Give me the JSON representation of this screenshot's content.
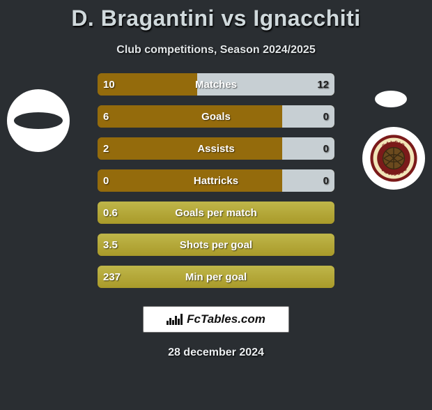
{
  "header": {
    "title": "D. Bragantini vs Ignacchiti",
    "subtitle": "Club competitions, Season 2024/2025"
  },
  "colors": {
    "background": "#2a2e32",
    "bar_base": "#946b0c",
    "bar_highlight": "#c7cfd3",
    "bar_alt": "#bfb64a",
    "text": "#ffffff"
  },
  "crest": {
    "outer": "#7b1a1a",
    "ring": "#f1e5b8",
    "ball": "#6b4a1e",
    "ball_lines": "#3a2a12",
    "text_top": "CALCIO",
    "text_bottom": "REGGIANA"
  },
  "stats": [
    {
      "label": "Matches",
      "left_value": "10",
      "right_value": "12",
      "left_pct": 42,
      "right_pct": 58,
      "highlight_side": "right"
    },
    {
      "label": "Goals",
      "left_value": "6",
      "right_value": "0",
      "left_pct": 78,
      "right_pct": 22,
      "highlight_side": "right"
    },
    {
      "label": "Assists",
      "left_value": "2",
      "right_value": "0",
      "left_pct": 78,
      "right_pct": 22,
      "highlight_side": "right"
    },
    {
      "label": "Hattricks",
      "left_value": "0",
      "right_value": "0",
      "left_pct": 78,
      "right_pct": 22,
      "highlight_side": "right"
    },
    {
      "label": "Goals per match",
      "left_value": "0.6",
      "right_value": "",
      "left_pct": 100,
      "right_pct": 0,
      "highlight_side": "none"
    },
    {
      "label": "Shots per goal",
      "left_value": "3.5",
      "right_value": "",
      "left_pct": 100,
      "right_pct": 0,
      "highlight_side": "none"
    },
    {
      "label": "Min per goal",
      "left_value": "237",
      "right_value": "",
      "left_pct": 100,
      "right_pct": 0,
      "highlight_side": "none"
    }
  ],
  "brand": {
    "label": "FcTables.com"
  },
  "date": "28 december 2024"
}
